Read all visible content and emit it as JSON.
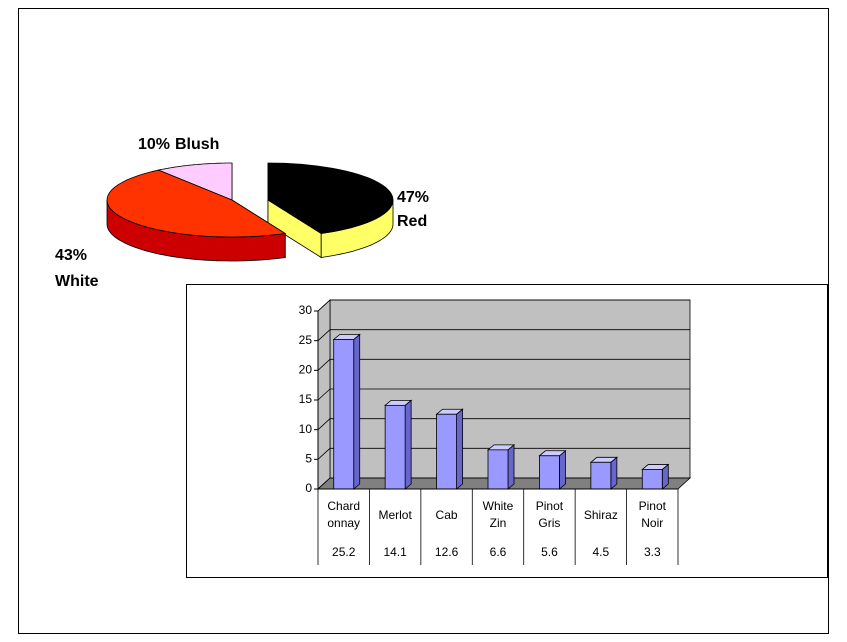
{
  "chart_data": [
    {
      "type": "pie",
      "categories": [
        "Blush",
        "White",
        "Red"
      ],
      "values": [
        10,
        43,
        47
      ],
      "value_labels": [
        "10%",
        "43%",
        "47%"
      ],
      "colors": [
        "#ffccff",
        "#000000",
        "#ff3300"
      ],
      "side_colors": [
        "#ff66ff",
        "#ffff66",
        "#cc0000"
      ]
    },
    {
      "type": "bar",
      "categories": [
        "Chard onnay",
        "Merlot",
        "Cab",
        "White Zin",
        "Pinot Gris",
        "Shiraz",
        "Pinot Noir"
      ],
      "values": [
        25.2,
        14.1,
        12.6,
        6.6,
        5.6,
        4.5,
        3.3
      ],
      "color": "#9999ff",
      "ylim": [
        0,
        30
      ],
      "yticks": [
        0,
        5,
        10,
        15,
        20,
        25,
        30
      ],
      "grid": true,
      "data_table": true
    }
  ]
}
